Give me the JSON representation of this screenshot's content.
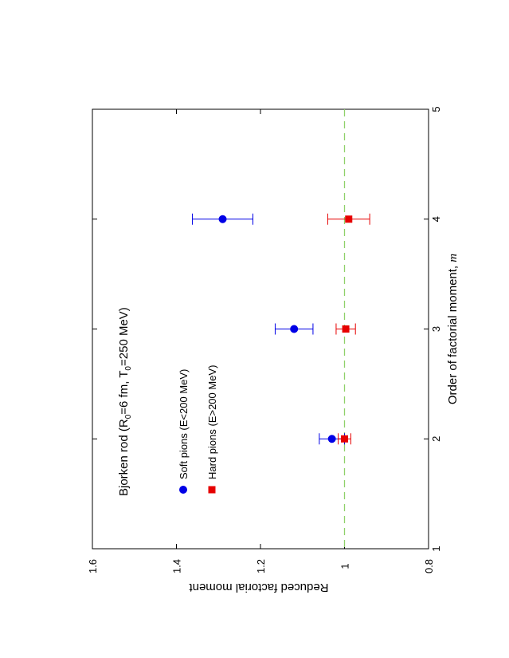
{
  "chart_data": {
    "type": "scatter",
    "orientation": "rotated 90° counter-clockwise",
    "annotation": {
      "prefix": "Bjorken rod (R",
      "sub1": "0",
      "mid": "=6 fm, T",
      "sub2": "0",
      "suffix": "=250 MeV)"
    },
    "xlabel": {
      "text": "Order of factorial moment, ",
      "var": "m"
    },
    "ylabel": "Reduced factorial moment",
    "xlim": [
      1,
      5
    ],
    "ylim": [
      0.8,
      1.6
    ],
    "xticks": [
      "1",
      "2",
      "3",
      "4",
      "5"
    ],
    "yticks": [
      "0.8",
      "1",
      "1.2",
      "1.4",
      "1.6"
    ],
    "grid": false,
    "legend_placement": "upper-left",
    "reference_line": {
      "y": 1.0,
      "color": "#8fd16a",
      "style": "dashed"
    },
    "series": [
      {
        "name": "Soft pions (E<200 MeV)",
        "marker": "circle",
        "color": "#0000e6",
        "points": [
          {
            "x": 2,
            "y": 1.03,
            "err": 0.03
          },
          {
            "x": 3,
            "y": 1.12,
            "err": 0.045
          },
          {
            "x": 4,
            "y": 1.29,
            "err": 0.072
          }
        ]
      },
      {
        "name": "Hard pions (E>200 MeV)",
        "marker": "square",
        "color": "#e60000",
        "points": [
          {
            "x": 2,
            "y": 1.0,
            "err": 0.015
          },
          {
            "x": 3,
            "y": 0.997,
            "err": 0.023
          },
          {
            "x": 4,
            "y": 0.99,
            "err": 0.05
          }
        ]
      }
    ]
  }
}
